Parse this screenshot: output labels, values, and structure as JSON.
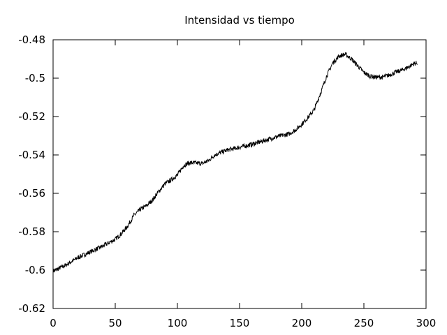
{
  "chart_data": {
    "type": "line",
    "title": "Intensidad vs tiempo",
    "xlabel": "",
    "ylabel": "",
    "xlim": [
      0,
      300
    ],
    "ylim": [
      -0.62,
      -0.48
    ],
    "xticks": [
      {
        "value": 0,
        "label": "0"
      },
      {
        "value": 50,
        "label": "50"
      },
      {
        "value": 100,
        "label": "100"
      },
      {
        "value": 150,
        "label": "150"
      },
      {
        "value": 200,
        "label": "200"
      },
      {
        "value": 250,
        "label": "250"
      },
      {
        "value": 300,
        "label": "300"
      }
    ],
    "yticks": [
      {
        "value": -0.62,
        "label": "-0.62"
      },
      {
        "value": -0.6,
        "label": "-0.6"
      },
      {
        "value": -0.58,
        "label": "-0.58"
      },
      {
        "value": -0.56,
        "label": "-0.56"
      },
      {
        "value": -0.54,
        "label": "-0.54"
      },
      {
        "value": -0.52,
        "label": "-0.52"
      },
      {
        "value": -0.5,
        "label": "-0.5"
      },
      {
        "value": -0.48,
        "label": "-0.48"
      }
    ],
    "grid": false,
    "legend": "none",
    "series": [
      {
        "color": "#000000",
        "noise": 0.0012,
        "x": [
          0,
          10,
          20,
          30,
          40,
          50,
          55,
          60,
          65,
          70,
          75,
          80,
          85,
          90,
          95,
          100,
          105,
          110,
          120,
          125,
          130,
          140,
          150,
          160,
          170,
          180,
          190,
          195,
          200,
          205,
          210,
          215,
          220,
          225,
          230,
          235,
          240,
          245,
          250,
          255,
          260,
          265,
          270,
          275,
          280,
          285,
          290,
          293
        ],
        "y": [
          -0.6005,
          -0.5975,
          -0.5935,
          -0.5905,
          -0.5875,
          -0.584,
          -0.581,
          -0.577,
          -0.5715,
          -0.5685,
          -0.5665,
          -0.5635,
          -0.559,
          -0.555,
          -0.553,
          -0.5505,
          -0.5455,
          -0.544,
          -0.5445,
          -0.543,
          -0.54,
          -0.5375,
          -0.536,
          -0.5345,
          -0.5325,
          -0.5305,
          -0.529,
          -0.527,
          -0.524,
          -0.5205,
          -0.5165,
          -0.508,
          -0.499,
          -0.492,
          -0.4885,
          -0.4875,
          -0.49,
          -0.4935,
          -0.497,
          -0.499,
          -0.4995,
          -0.4995,
          -0.4985,
          -0.497,
          -0.496,
          -0.4945,
          -0.4925,
          -0.492
        ]
      }
    ]
  }
}
